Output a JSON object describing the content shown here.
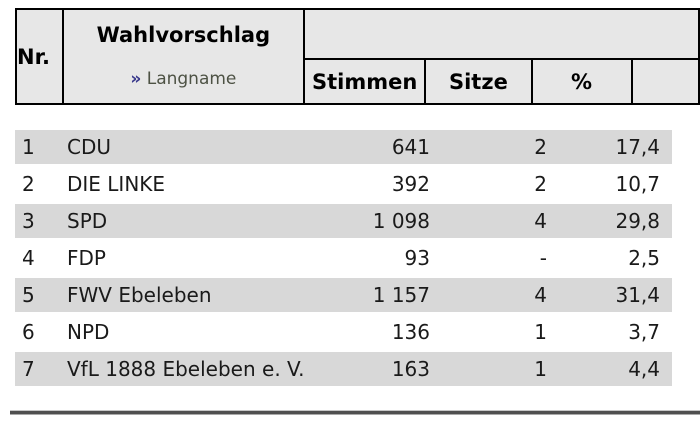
{
  "table": {
    "header": {
      "nr": "Nr.",
      "wahlvorschlag": "Wahlvorschlag",
      "langname_bullet": "»",
      "langname": "Langname",
      "stimmen": "Stimmen",
      "sitze": "Sitze",
      "percent": "%"
    },
    "rows": [
      {
        "nr": "1",
        "wahlvorschlag": "CDU",
        "stimmen": "641",
        "sitze": "2",
        "percent": "17,4"
      },
      {
        "nr": "2",
        "wahlvorschlag": "DIE LINKE",
        "stimmen": "392",
        "sitze": "2",
        "percent": "10,7"
      },
      {
        "nr": "3",
        "wahlvorschlag": "SPD",
        "stimmen": "1 098",
        "sitze": "4",
        "percent": "29,8"
      },
      {
        "nr": "4",
        "wahlvorschlag": "FDP",
        "stimmen": "93",
        "sitze": "-",
        "percent": "2,5"
      },
      {
        "nr": "5",
        "wahlvorschlag": "FWV Ebeleben",
        "stimmen": "1 157",
        "sitze": "4",
        "percent": "31,4"
      },
      {
        "nr": "6",
        "wahlvorschlag": "NPD",
        "stimmen": "136",
        "sitze": "1",
        "percent": "3,7"
      },
      {
        "nr": "7",
        "wahlvorschlag": "VfL 1888 Ebeleben e. V.",
        "stimmen": "163",
        "sitze": "1",
        "percent": "4,4"
      }
    ]
  },
  "colors": {
    "header_bg": "#e7e7e7",
    "row_stripe": "#d8d8d8",
    "table_border": "#000000",
    "link_text": "#4d5244",
    "link_bullet": "#3a3a8c",
    "row_text": "#1a1a1a",
    "rule_dark": "#4f4f4f"
  }
}
